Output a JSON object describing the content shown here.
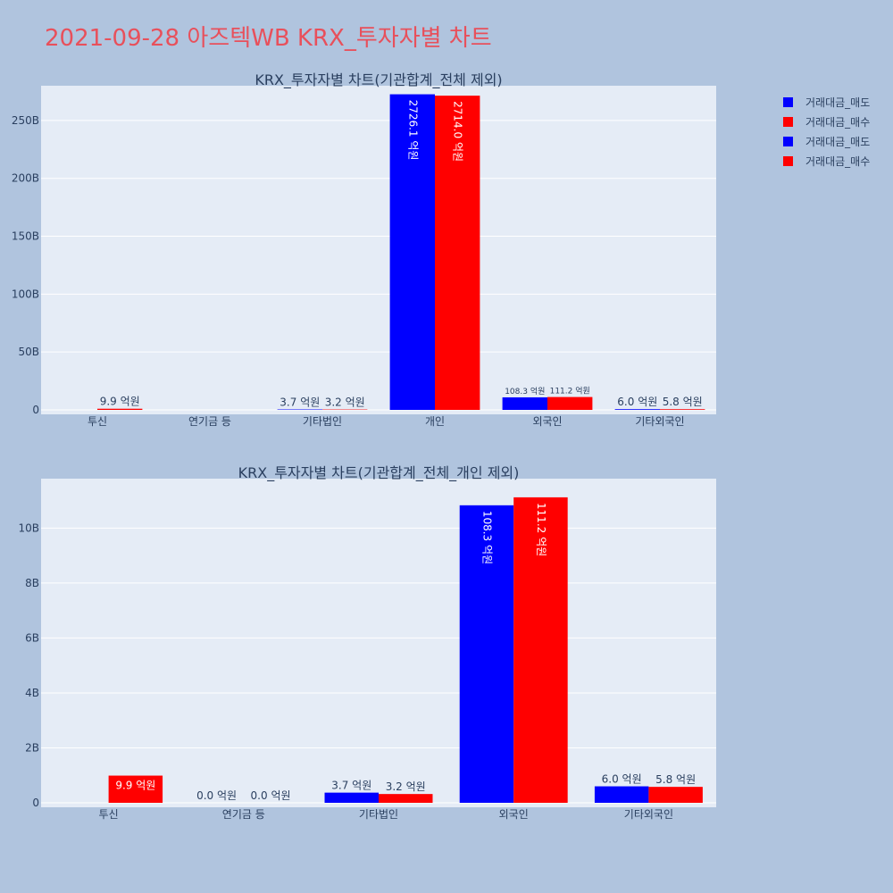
{
  "title": "2021-09-28 아즈텍WB KRX_투자자별 차트",
  "colors": {
    "sell": "#0000ff",
    "buy": "#ff0000"
  },
  "legend": [
    {
      "name": "거래대금_매도",
      "color": "#0000ff"
    },
    {
      "name": "거래대금_매수",
      "color": "#ff0000"
    },
    {
      "name": "거래대금_매도",
      "color": "#0000ff"
    },
    {
      "name": "거래대금_매수",
      "color": "#ff0000"
    }
  ],
  "chart_data": [
    {
      "type": "bar",
      "title": "KRX_투자자별 차트(기관합계_전체 제외)",
      "categories": [
        "투신",
        "연기금 등",
        "기타법인",
        "개인",
        "외국인",
        "기타외국인"
      ],
      "ylim": [
        0,
        280000000000
      ],
      "yticks": [
        0,
        50000000000,
        100000000000,
        150000000000,
        200000000000,
        250000000000
      ],
      "ytick_labels": [
        "0",
        "50B",
        "100B",
        "150B",
        "200B",
        "250B"
      ],
      "grid": true,
      "series": [
        {
          "name": "거래대금_매도",
          "values": [
            null,
            null,
            370000000,
            272610000000,
            10830000000,
            600000000
          ],
          "labels": [
            "",
            "",
            "3.7 억원",
            "2726.1 억원",
            "108.3 억원",
            "6.0 억원"
          ]
        },
        {
          "name": "거래대금_매수",
          "values": [
            990000000,
            null,
            320000000,
            271400000000,
            11120000000,
            580000000
          ],
          "labels": [
            "9.9 억원",
            "",
            "3.2 억원",
            "2714.0 억원",
            "111.2 억원",
            "5.8 억원"
          ]
        }
      ]
    },
    {
      "type": "bar",
      "title": "KRX_투자자별 차트(기관합계_전체_개인 제외)",
      "categories": [
        "투신",
        "연기금 등",
        "기타법인",
        "외국인",
        "기타외국인"
      ],
      "ylim": [
        0,
        11800000000
      ],
      "yticks": [
        0,
        2000000000,
        4000000000,
        6000000000,
        8000000000,
        10000000000
      ],
      "ytick_labels": [
        "0",
        "2B",
        "4B",
        "6B",
        "8B",
        "10B"
      ],
      "grid": true,
      "series": [
        {
          "name": "거래대금_매도",
          "values": [
            null,
            0,
            370000000,
            10830000000,
            600000000
          ],
          "labels": [
            "",
            "0.0 억원",
            "3.7 억원",
            "108.3 억원",
            "6.0 억원"
          ]
        },
        {
          "name": "거래대금_매수",
          "values": [
            990000000,
            0,
            320000000,
            11120000000,
            580000000
          ],
          "labels": [
            "9.9 억원",
            "0.0 억원",
            "3.2 억원",
            "111.2 억원",
            "5.8 억원"
          ]
        }
      ]
    }
  ]
}
